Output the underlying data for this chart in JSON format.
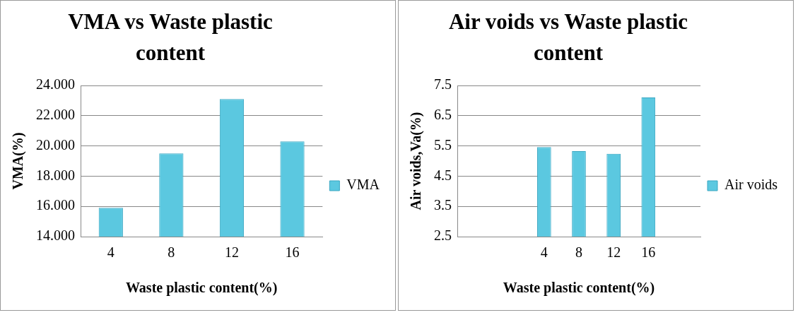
{
  "chart_data": [
    {
      "type": "bar",
      "title": "VMA vs Waste plastic content",
      "xlabel": "Waste plastic content(%)",
      "ylabel": "VMA(%)",
      "categories": [
        "4",
        "8",
        "12",
        "16"
      ],
      "series": [
        {
          "name": "VMA",
          "color": "#5bc8e0",
          "values": [
            15.9,
            19.5,
            23.1,
            20.3
          ]
        }
      ],
      "ylim": [
        14,
        24
      ],
      "yticks": [
        {
          "value": 14,
          "label": "14.000"
        },
        {
          "value": 16,
          "label": "16.000"
        },
        {
          "value": 18,
          "label": "18.000"
        },
        {
          "value": 20,
          "label": "20.000"
        },
        {
          "value": 22,
          "label": "22.000"
        },
        {
          "value": 24,
          "label": "24.000"
        }
      ],
      "grid": "y",
      "legend": "right"
    },
    {
      "type": "bar",
      "title": "Air voids vs Waste plastic content",
      "xlabel": "Waste plastic content(%)",
      "ylabel": "Air voids,Va(%)",
      "categories": [
        null,
        null,
        "4",
        "8",
        "12",
        "16",
        null
      ],
      "series": [
        {
          "name": "Air voids",
          "color": "#5bc8e0",
          "values": [
            null,
            null,
            5.46,
            5.33,
            5.24,
            7.1,
            null
          ]
        }
      ],
      "ylim": [
        2.5,
        7.5
      ],
      "yticks": [
        2.5,
        3.5,
        4.5,
        5.5,
        6.5,
        7.5
      ],
      "grid": "y",
      "legend": "right"
    }
  ]
}
